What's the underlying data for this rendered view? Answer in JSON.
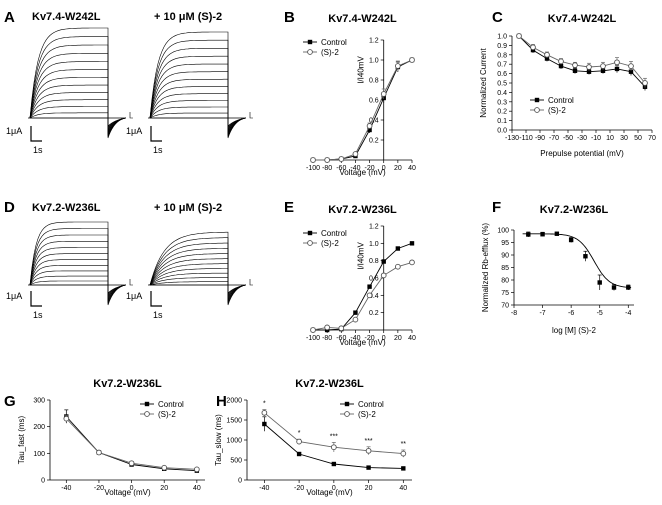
{
  "figure": {
    "panel_letters": [
      "A",
      "B",
      "C",
      "D",
      "E",
      "F",
      "G",
      "H"
    ],
    "trace_panels": [
      {
        "panel": "A",
        "left_label": "Kv7.4-W242L",
        "right_label": "+ 10 μM (S)-2",
        "scale_current": "1μA",
        "scale_time": "1s"
      },
      {
        "panel": "D",
        "left_label": "Kv7.2-W236L",
        "right_label": "+ 10 μM (S)-2",
        "scale_current": "1μA",
        "scale_time": "1s"
      }
    ]
  },
  "chart_data": [
    {
      "panel": "B",
      "type": "line",
      "title": "Kv7.4-W242L",
      "xlabel": "Voltage (mV)",
      "ylabel": "I/I40mV",
      "xlim": [
        -100,
        40
      ],
      "ylim": [
        0,
        1.2
      ],
      "xticks": [
        -100,
        -80,
        -60,
        -40,
        -20,
        0,
        20,
        40
      ],
      "yticks": [
        0.2,
        0.4,
        0.6,
        0.8,
        1.0,
        1.2
      ],
      "ytick_labels": [
        "0.2",
        "0.4",
        "0.6",
        "0.8",
        "1.0",
        "1.2"
      ],
      "x": [
        -100,
        -80,
        -60,
        -40,
        -20,
        0,
        20,
        40
      ],
      "series": [
        {
          "name": "Control",
          "marker": "filled-square",
          "values": [
            0.0,
            0.0,
            0.01,
            0.04,
            0.3,
            0.62,
            0.93,
            1.0
          ],
          "errors": [
            0.0,
            0.0,
            0.0,
            0.01,
            0.03,
            0.05,
            0.05,
            0.02
          ]
        },
        {
          "name": "(S)-2",
          "marker": "open-circle",
          "values": [
            0.0,
            0.0,
            0.01,
            0.06,
            0.34,
            0.66,
            0.94,
            1.0
          ],
          "errors": [
            0.0,
            0.0,
            0.0,
            0.01,
            0.03,
            0.05,
            0.05,
            0.02
          ]
        }
      ],
      "legend": "top-left"
    },
    {
      "panel": "C",
      "type": "line",
      "title": "Kv7.4-W242L",
      "xlabel": "Prepulse potential (mV)",
      "ylabel": "Normalized Current",
      "xlim": [
        -130,
        70
      ],
      "ylim": [
        0,
        1.0
      ],
      "xticks": [
        -130,
        -110,
        -90,
        -70,
        -50,
        -30,
        -10,
        10,
        30,
        50,
        70
      ],
      "yticks": [
        0,
        0.1,
        0.2,
        0.3,
        0.4,
        0.5,
        0.6,
        0.7,
        0.8,
        0.9,
        1.0
      ],
      "ytick_labels": [
        "0.0",
        "0.1",
        "0.2",
        "0.3",
        "0.4",
        "0.5",
        "0.6",
        "0.7",
        "0.8",
        "0.9",
        "1.0"
      ],
      "x": [
        -120,
        -100,
        -80,
        -60,
        -40,
        -20,
        0,
        20,
        40,
        60
      ],
      "series": [
        {
          "name": "Control",
          "marker": "filled-square",
          "values": [
            1.0,
            0.85,
            0.76,
            0.68,
            0.63,
            0.62,
            0.63,
            0.65,
            0.62,
            0.46
          ],
          "errors": [
            0.01,
            0.03,
            0.03,
            0.03,
            0.03,
            0.03,
            0.03,
            0.04,
            0.04,
            0.04
          ]
        },
        {
          "name": "(S)-2",
          "marker": "open-circle",
          "values": [
            1.0,
            0.88,
            0.8,
            0.73,
            0.69,
            0.67,
            0.68,
            0.72,
            0.68,
            0.5
          ],
          "errors": [
            0.01,
            0.03,
            0.03,
            0.03,
            0.03,
            0.04,
            0.04,
            0.05,
            0.05,
            0.05
          ]
        }
      ],
      "legend": "bottom-left"
    },
    {
      "panel": "E",
      "type": "line",
      "title": "Kv7.2-W236L",
      "xlabel": "Voltage (mV)",
      "ylabel": "I/I40mV",
      "xlim": [
        -100,
        40
      ],
      "ylim": [
        0,
        1.2
      ],
      "xticks": [
        -100,
        -80,
        -60,
        -40,
        -20,
        0,
        20,
        40
      ],
      "yticks": [
        0.2,
        0.4,
        0.6,
        0.8,
        1.0,
        1.2
      ],
      "ytick_labels": [
        "0.2",
        "0.4",
        "0.6",
        "0.8",
        "1.0",
        "1.2"
      ],
      "x": [
        -100,
        -80,
        -60,
        -40,
        -20,
        0,
        20,
        40
      ],
      "series": [
        {
          "name": "Control",
          "marker": "filled-square",
          "values": [
            0.0,
            0.0,
            0.01,
            0.2,
            0.5,
            0.79,
            0.94,
            1.0
          ],
          "errors": [
            0.01,
            0.01,
            0.01,
            0.02,
            0.02,
            0.02,
            0.02,
            0.01
          ]
        },
        {
          "name": "(S)-2",
          "marker": "open-circle",
          "values": [
            0.0,
            0.03,
            0.02,
            0.12,
            0.4,
            0.63,
            0.73,
            0.78
          ],
          "errors": [
            0.01,
            0.01,
            0.01,
            0.02,
            0.02,
            0.02,
            0.02,
            0.02
          ]
        }
      ],
      "legend": "top-left"
    },
    {
      "panel": "F",
      "type": "line",
      "title": "Kv7.2-W236L",
      "xlabel": "log [M] (S)-2",
      "ylabel": "Normalized Rb-efflux (%)",
      "xlim": [
        -8,
        -3.8
      ],
      "ylim": [
        70,
        100
      ],
      "xticks": [
        -8,
        -7,
        -6,
        -5,
        -4
      ],
      "yticks": [
        70,
        75,
        80,
        85,
        90,
        95,
        100
      ],
      "ytick_labels": [
        "70",
        "75",
        "80",
        "85",
        "90",
        "95",
        "100"
      ],
      "series": [
        {
          "name": "Rb-efflux",
          "marker": "filled-square",
          "x": [
            -7.5,
            -7.0,
            -6.5,
            -6.0,
            -5.5,
            -5.0,
            -4.5,
            -4.0
          ],
          "values": [
            98.2,
            98.3,
            98.5,
            96.0,
            89.5,
            79.0,
            77.0,
            77.0
          ],
          "errors": [
            1.0,
            0.8,
            0.3,
            1.0,
            2.0,
            3.0,
            1.2,
            1.0
          ]
        }
      ],
      "fit": {
        "type": "sigmoid",
        "top": 98.5,
        "bottom": 76.8,
        "logEC50": -5.2,
        "hill": 1.6
      }
    },
    {
      "panel": "G",
      "type": "line",
      "title": "Kv7.2-W236L",
      "xlabel": "Voltage (mV)",
      "ylabel": "Tau_fast (ms)",
      "xlim": [
        -50,
        45
      ],
      "ylim": [
        0,
        300
      ],
      "xticks": [
        -40,
        -20,
        0,
        20,
        40
      ],
      "yticks": [
        0,
        100,
        200,
        300
      ],
      "ytick_labels": [
        "0",
        "100",
        "200",
        "300"
      ],
      "x": [
        -40,
        -20,
        0,
        20,
        40
      ],
      "series": [
        {
          "name": "Control",
          "marker": "filled-square",
          "values": [
            238,
            103,
            58,
            42,
            35
          ],
          "errors": [
            25,
            6,
            5,
            4,
            3
          ]
        },
        {
          "name": "(S)-2",
          "marker": "open-circle",
          "values": [
            230,
            103,
            63,
            46,
            40
          ],
          "errors": [
            12,
            6,
            5,
            4,
            3
          ]
        }
      ],
      "legend": "top-right"
    },
    {
      "panel": "H",
      "type": "line",
      "title": "Kv7.2-W236L",
      "xlabel": "Voltage (mV)",
      "ylabel": "Tau_slow (ms)",
      "xlim": [
        -50,
        45
      ],
      "ylim": [
        0,
        2000
      ],
      "xticks": [
        -40,
        -20,
        0,
        20,
        40
      ],
      "yticks": [
        0,
        500,
        1000,
        1500,
        2000
      ],
      "ytick_labels": [
        "0",
        "500",
        "1000",
        "1500",
        "2000"
      ],
      "x": [
        -40,
        -20,
        0,
        20,
        40
      ],
      "series": [
        {
          "name": "Control",
          "marker": "filled-square",
          "values": [
            1400,
            650,
            400,
            310,
            290
          ],
          "errors": [
            180,
            40,
            25,
            20,
            15
          ]
        },
        {
          "name": "(S)-2",
          "marker": "open-circle",
          "values": [
            1680,
            960,
            820,
            730,
            660
          ],
          "errors": [
            80,
            60,
            120,
            100,
            90
          ]
        }
      ],
      "annotations": [
        "*",
        "*",
        "***",
        "***",
        "**"
      ],
      "legend": "top-right"
    }
  ]
}
